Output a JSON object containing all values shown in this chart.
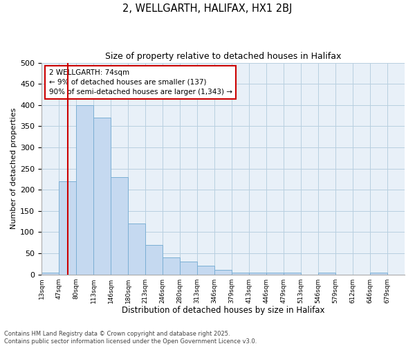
{
  "title1": "2, WELLGARTH, HALIFAX, HX1 2BJ",
  "title2": "Size of property relative to detached houses in Halifax",
  "xlabel": "Distribution of detached houses by size in Halifax",
  "ylabel": "Number of detached properties",
  "bar_color": "#c5d9f0",
  "bar_edge_color": "#7bafd4",
  "background_color": "#e8f0f8",
  "grid_color": "#b8cfe0",
  "annotation_text": "2 WELLGARTH: 74sqm\n← 9% of detached houses are smaller (137)\n90% of semi-detached houses are larger (1,343) →",
  "vline_color": "#cc0000",
  "vline_bin": 1.5,
  "categories": [
    "13sqm",
    "47sqm",
    "80sqm",
    "113sqm",
    "146sqm",
    "180sqm",
    "213sqm",
    "246sqm",
    "280sqm",
    "313sqm",
    "346sqm",
    "379sqm",
    "413sqm",
    "446sqm",
    "479sqm",
    "513sqm",
    "546sqm",
    "579sqm",
    "612sqm",
    "646sqm",
    "679sqm"
  ],
  "values": [
    5,
    220,
    400,
    370,
    230,
    120,
    70,
    40,
    30,
    20,
    10,
    5,
    5,
    5,
    5,
    0,
    5,
    0,
    0,
    5,
    0
  ],
  "ylim": [
    0,
    500
  ],
  "yticks": [
    0,
    50,
    100,
    150,
    200,
    250,
    300,
    350,
    400,
    450,
    500
  ],
  "footer1": "Contains HM Land Registry data © Crown copyright and database right 2025.",
  "footer2": "Contains public sector information licensed under the Open Government Licence v3.0."
}
